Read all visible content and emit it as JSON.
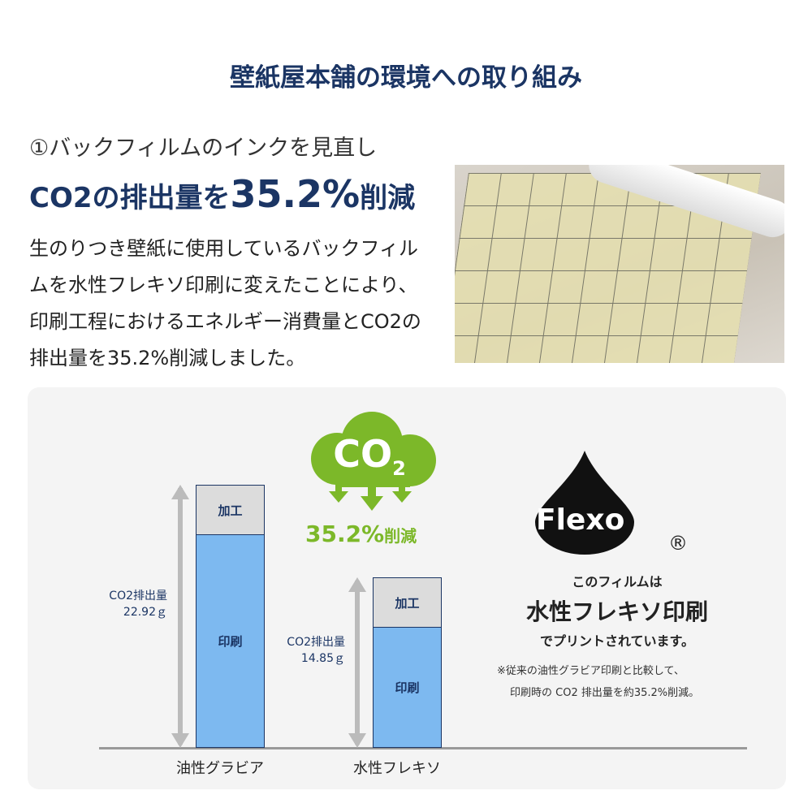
{
  "title": "壁紙屋本舗の環境への取り組み",
  "section": {
    "subtitle": "①バックフィルムのインクを見直し",
    "headline_pre": "CO2の排出量を",
    "headline_value": "35.2%",
    "headline_post": "削減",
    "body": "生のりつき壁紙に使用しているバックフィルムを水性フレキソ印刷に変えたことにより、印刷工程におけるエネルギー消費量とCO2の排出量を35.2%削減しました。"
  },
  "diagram": {
    "cloud_label": "CO",
    "cloud_sub": "2",
    "reduction_value": "35.2%",
    "reduction_label": "削減",
    "colors": {
      "navy": "#1b3564",
      "green": "#7cb829",
      "print": "#7db9f0",
      "processing": "#dcdcdc"
    },
    "bars": [
      {
        "category": "油性グラビア",
        "value_g": 22.92,
        "label": "CO2排出量",
        "value_text": "22.92ｇ",
        "segments": [
          "加工",
          "印刷"
        ]
      },
      {
        "category": "水性フレキソ",
        "value_g": 14.85,
        "label": "CO2排出量",
        "value_text": "14.85ｇ",
        "segments": [
          "加工",
          "印刷"
        ]
      }
    ]
  },
  "flexo": {
    "logo_text": "Flexo",
    "registered": "®",
    "line1": "このフィルムは",
    "line2": "水性フレキソ印刷",
    "line3": "でプリントされています。",
    "note1": "※従来の油性グラビア印刷と比較して、",
    "note2": "印刷時の CO2 排出量を約35.2%削減。"
  }
}
